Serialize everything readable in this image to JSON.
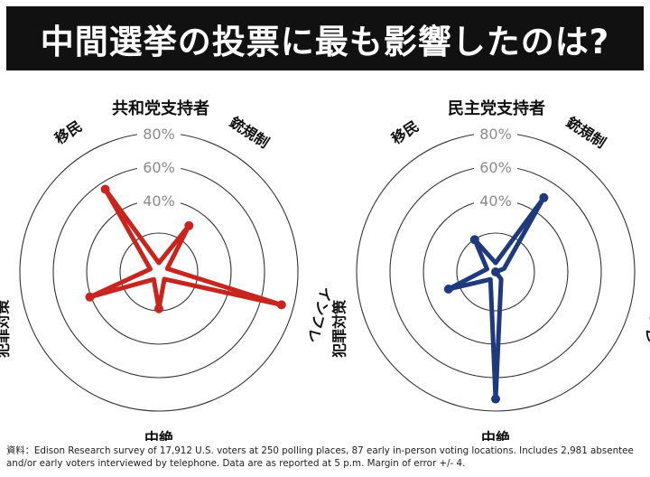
{
  "title": "中間選挙の投票に最も影響したのは?",
  "colors": {
    "republican": "#c8251f",
    "democrat": "#1f3a7c",
    "ring": "#333333",
    "tick_label": "#8a8a8a"
  },
  "chart_data": [
    {
      "type": "radar",
      "title": "共和党支持者",
      "axes": [
        "移民",
        "銃規制",
        "インフレ",
        "中絶",
        "犯罪対策"
      ],
      "values": [
        59,
        33,
        76,
        22,
        44
      ],
      "rlim": [
        0,
        100
      ],
      "rticks": [
        40,
        60,
        80
      ],
      "rtick_labels": [
        "40%",
        "60%",
        "80%"
      ]
    },
    {
      "type": "radar",
      "title": "民主党支持者",
      "axes": [
        "移民",
        "銃規制",
        "インフレ",
        "中絶",
        "犯罪対策"
      ],
      "values": [
        23,
        53,
        0,
        76,
        30
      ],
      "rlim": [
        0,
        100
      ],
      "rticks": [
        40,
        60,
        80
      ],
      "rtick_labels": [
        "40%",
        "60%",
        "80%"
      ]
    }
  ],
  "footer": "資料：Edison Research survey of 17,912 U.S. voters at 250 polling places, 87 early in-person voting locations. Includes 2,981 absentee and/or early voters interviewed by telephone. Data are as reported at 5 p.m. Margin of error +/- 4."
}
